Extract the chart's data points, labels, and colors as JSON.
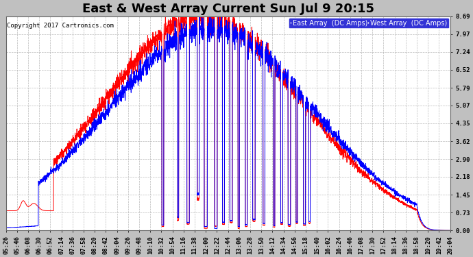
{
  "title": "East & West Array Current Sun Jul 9 20:15",
  "copyright": "Copyright 2017 Cartronics.com",
  "legend_east": "East Array  (DC Amps)",
  "legend_west": "West Array  (DC Amps)",
  "east_color": "#0000ff",
  "west_color": "#ff0000",
  "background_color": "#c0c0c0",
  "plot_bg_color": "#ffffff",
  "title_color": "#000000",
  "copyright_color": "#000000",
  "grid_color": "#aaaaaa",
  "yticks": [
    0.0,
    0.73,
    1.45,
    2.18,
    2.9,
    3.62,
    4.35,
    5.07,
    5.79,
    6.52,
    7.24,
    7.97,
    8.69
  ],
  "ylim": [
    0.0,
    8.69
  ],
  "xtick_labels": [
    "05:26",
    "05:46",
    "06:08",
    "06:30",
    "06:52",
    "07:14",
    "07:36",
    "07:58",
    "08:20",
    "08:42",
    "09:04",
    "09:26",
    "09:48",
    "10:10",
    "10:32",
    "10:54",
    "11:16",
    "11:38",
    "12:00",
    "12:22",
    "12:44",
    "13:06",
    "13:28",
    "13:50",
    "14:12",
    "14:34",
    "14:56",
    "15:18",
    "15:40",
    "16:02",
    "16:24",
    "16:46",
    "17:08",
    "17:30",
    "17:52",
    "18:14",
    "18:36",
    "18:58",
    "19:20",
    "19:42",
    "20:04"
  ],
  "title_fontsize": 13,
  "axis_fontsize": 6.5,
  "copyright_fontsize": 6.5,
  "legend_fontsize": 7,
  "legend_east_bg": "#0000cc",
  "legend_west_bg": "#cc0000"
}
